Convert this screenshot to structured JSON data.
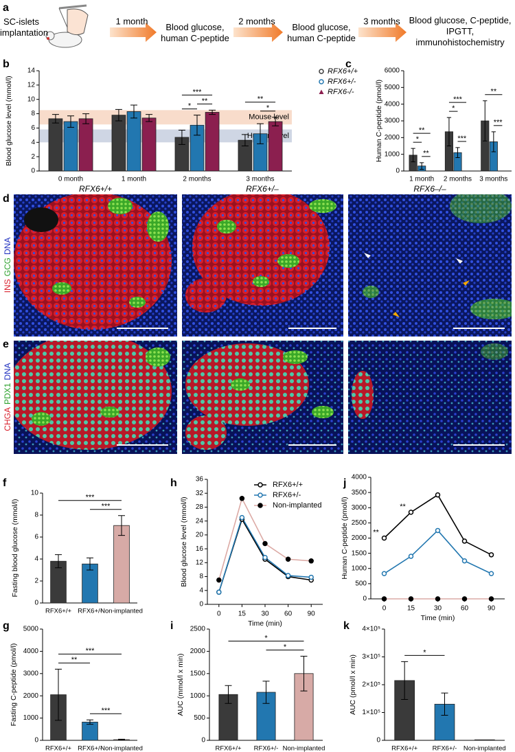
{
  "panel_a": {
    "panel": "a",
    "steps": [
      "SC-islets implantation",
      "Blood glucose, human C-peptide",
      "Blood glucose, human C-peptide",
      "Blood glucose, C-peptide, IPGTT, immunohistochemistry"
    ],
    "intervals": [
      "1 month",
      "2 months",
      "3 months"
    ]
  },
  "chart_data": [
    {
      "panel": "b",
      "type": "bar",
      "ylabel": "Blood glucose level (mmol/l)",
      "categories": [
        "0 month",
        "1 month",
        "2 months",
        "3 months"
      ],
      "series": [
        {
          "name": "RFX6+/+",
          "color": "#3a3a3a",
          "marker": "open",
          "values": [
            7.3,
            7.8,
            4.7,
            4.3
          ],
          "errors": [
            0.6,
            0.8,
            1.0,
            0.8
          ]
        },
        {
          "name": "RFX6+/-",
          "color": "#2277b0",
          "marker": "open",
          "values": [
            6.9,
            8.3,
            6.4,
            5.2
          ],
          "errors": [
            0.8,
            0.9,
            1.4,
            1.4
          ]
        },
        {
          "name": "RFX6-/-",
          "color": "#8b1f4f",
          "marker": "triangle",
          "values": [
            7.3,
            7.4,
            8.2,
            6.9
          ],
          "errors": [
            0.7,
            0.5,
            0.3,
            0.6
          ]
        }
      ],
      "ylim": [
        0,
        14
      ],
      "yticks": [
        0,
        2,
        4,
        6,
        8,
        10,
        12,
        14
      ],
      "bands": [
        {
          "label": "Mouse level",
          "range": [
            6.5,
            8.5
          ],
          "color": "#f8dccb"
        },
        {
          "label": "Human level",
          "range": [
            4,
            5.8
          ],
          "color": "#cfd6e4"
        }
      ],
      "significance": [
        {
          "label": "*",
          "category": "2 months",
          "between": [
            "RFX6+/+",
            "RFX6+/-"
          ]
        },
        {
          "label": "**",
          "category": "2 months",
          "between": [
            "RFX6+/-",
            "RFX6-/-"
          ]
        },
        {
          "label": "***",
          "category": "2 months",
          "between": [
            "RFX6+/+",
            "RFX6-/-"
          ]
        },
        {
          "label": "*",
          "category": "3 months",
          "between": [
            "RFX6+/-",
            "RFX6-/-"
          ]
        },
        {
          "label": "**",
          "category": "3 months",
          "between": [
            "RFX6+/+",
            "RFX6-/-"
          ]
        }
      ],
      "legend": "outside-right"
    },
    {
      "panel": "c",
      "type": "bar",
      "ylabel": "Human C-peptide (pmol/l)",
      "categories": [
        "1 month",
        "2 months",
        "3 months"
      ],
      "series": [
        {
          "name": "RFX6+/+",
          "color": "#3a3a3a",
          "values": [
            950,
            2350,
            3000
          ],
          "errors": [
            400,
            850,
            1200
          ]
        },
        {
          "name": "RFX6+/-",
          "color": "#2277b0",
          "values": [
            300,
            1100,
            1750
          ],
          "errors": [
            200,
            300,
            600
          ]
        },
        {
          "name": "RFX6-/-",
          "color": "#8b1f4f",
          "values": [
            0,
            0,
            0
          ],
          "errors": [
            0,
            0,
            0
          ]
        }
      ],
      "ylim": [
        0,
        6000
      ],
      "yticks": [
        0,
        1000,
        2000,
        3000,
        4000,
        5000,
        6000
      ],
      "significance": [
        {
          "label": "**",
          "category": "1 month",
          "between": [
            "RFX6+/-",
            "RFX6-/-"
          ]
        },
        {
          "label": "*",
          "category": "1 month",
          "between": [
            "RFX6+/+",
            "RFX6+/-"
          ]
        },
        {
          "label": "**",
          "category": "1 month",
          "between": [
            "RFX6+/+",
            "RFX6-/-"
          ]
        },
        {
          "label": "***",
          "category": "2 months",
          "between": [
            "RFX6+/-",
            "RFX6-/-"
          ]
        },
        {
          "label": "*",
          "category": "2 months",
          "between": [
            "RFX6+/+",
            "RFX6+/-"
          ]
        },
        {
          "label": "***",
          "category": "2 months",
          "between": [
            "RFX6+/+",
            "RFX6-/-"
          ]
        },
        {
          "label": "***",
          "category": "3 months",
          "between": [
            "RFX6+/-",
            "RFX6-/-"
          ]
        },
        {
          "label": "**",
          "category": "3 months",
          "between": [
            "RFX6+/+",
            "RFX6-/-"
          ]
        }
      ]
    },
    {
      "panel": "f",
      "type": "bar",
      "ylabel": "Fasting blood glucose (mmol/l)",
      "categories": [
        "RFX6+/+",
        "RFX6+/-",
        "Non-implanted"
      ],
      "values": [
        3.8,
        3.55,
        7.05
      ],
      "errors": [
        0.6,
        0.55,
        0.9
      ],
      "colors": [
        "#3a3a3a",
        "#2277b0",
        "#d7aaa6"
      ],
      "ylim": [
        0,
        10
      ],
      "yticks": [
        0,
        2,
        4,
        6,
        8,
        10
      ],
      "significance": [
        {
          "label": "***",
          "between": [
            "RFX6+/-",
            "Non-implanted"
          ]
        },
        {
          "label": "***",
          "between": [
            "RFX6+/+",
            "Non-implanted"
          ]
        }
      ]
    },
    {
      "panel": "h",
      "type": "line",
      "ylabel": "Blood glucose level (mmol/l)",
      "xlabel": "Time (min)",
      "categories": [
        "0",
        "15",
        "30",
        "60",
        "90"
      ],
      "series": [
        {
          "name": "RFX6+/+",
          "color": "#000000",
          "marker": "open",
          "values": [
            3.5,
            24.5,
            13,
            8,
            7
          ]
        },
        {
          "name": "RFX6+/-",
          "color": "#2277b0",
          "marker": "open",
          "values": [
            3.5,
            25,
            13.5,
            8.3,
            7.8
          ]
        },
        {
          "name": "Non-implanted",
          "color": "#dcaaa5",
          "marker": "filled",
          "marker_color": "#000000",
          "values": [
            7,
            30.5,
            17.5,
            13,
            12.5
          ]
        }
      ],
      "ylim": [
        0,
        36
      ],
      "yticks": [
        0,
        4,
        8,
        12,
        16,
        20,
        24,
        28,
        32,
        36
      ],
      "legend": "upper-right"
    },
    {
      "panel": "j",
      "type": "line",
      "ylabel": "Human C-peptide (pmol/l)",
      "xlabel": "Time (min)",
      "categories": [
        "0",
        "15",
        "30",
        "60",
        "90"
      ],
      "series": [
        {
          "name": "RFX6+/+",
          "color": "#000000",
          "marker": "open",
          "values": [
            2000,
            2850,
            3420,
            1900,
            1450
          ]
        },
        {
          "name": "RFX6+/-",
          "color": "#2277b0",
          "marker": "open",
          "values": [
            830,
            1400,
            2250,
            1250,
            830
          ]
        },
        {
          "name": "Non-implanted",
          "color": "#dcaaa5",
          "marker": "filled",
          "marker_color": "#000000",
          "values": [
            0,
            0,
            0,
            0,
            0
          ]
        }
      ],
      "ylim": [
        0,
        4000
      ],
      "yticks": [
        0,
        500,
        1000,
        1500,
        2000,
        2500,
        3000,
        3500,
        4000
      ],
      "significance": [
        {
          "label": "**",
          "category": "0"
        },
        {
          "label": "**",
          "category": "15"
        }
      ]
    },
    {
      "panel": "g",
      "type": "bar",
      "ylabel": "Fasting C-peptide (pmol/l)",
      "categories": [
        "RFX6+/+",
        "RFX6+/-",
        "Non-implanted"
      ],
      "values": [
        2050,
        820,
        30
      ],
      "errors": [
        1150,
        100,
        20
      ],
      "colors": [
        "#3a3a3a",
        "#2277b0",
        "#d7aaa6"
      ],
      "ylim": [
        0,
        5000
      ],
      "yticks": [
        0,
        1000,
        2000,
        3000,
        4000,
        5000
      ],
      "significance": [
        {
          "label": "**",
          "between": [
            "RFX6+/+",
            "RFX6+/-"
          ]
        },
        {
          "label": "***",
          "between": [
            "RFX6+/-",
            "Non-implanted"
          ]
        },
        {
          "label": "***",
          "between": [
            "RFX6+/+",
            "Non-implanted"
          ]
        }
      ]
    },
    {
      "panel": "i",
      "type": "bar",
      "ylabel": "AUC (mmol/l x min)",
      "categories": [
        "RFX6+/+",
        "RFX6+/-",
        "Non-implanted"
      ],
      "values": [
        1030,
        1080,
        1500
      ],
      "errors": [
        200,
        250,
        390
      ],
      "colors": [
        "#3a3a3a",
        "#2277b0",
        "#d7aaa6"
      ],
      "ylim": [
        0,
        2500
      ],
      "yticks": [
        0,
        500,
        1000,
        1500,
        2000,
        2500
      ],
      "significance": [
        {
          "label": "*",
          "between": [
            "RFX6+/-",
            "Non-implanted"
          ]
        },
        {
          "label": "*",
          "between": [
            "RFX6+/+",
            "Non-implanted"
          ]
        }
      ]
    },
    {
      "panel": "k",
      "type": "bar",
      "ylabel": "AUC (pmol/l x min)",
      "categories": [
        "RFX6+/+",
        "RFX6+/-",
        "Non-implanted"
      ],
      "values": [
        215000,
        130000,
        2000
      ],
      "errors": [
        68000,
        40000,
        0
      ],
      "colors": [
        "#3a3a3a",
        "#2277b0",
        "#d7aaa6"
      ],
      "ylim": [
        0,
        400000
      ],
      "yticks": [
        0,
        {
          "value": 100000,
          "label": "1×10⁵"
        },
        {
          "value": 200000,
          "label": "2×10⁵"
        },
        {
          "value": 300000,
          "label": "3×10⁵"
        },
        {
          "value": 400000,
          "label": "4×10⁵"
        }
      ],
      "significance": [
        {
          "label": "*",
          "between": [
            "RFX6+/+",
            "RFX6+/-"
          ]
        }
      ]
    }
  ],
  "images": {
    "columns": [
      {
        "label": "RFX6+/+",
        "color": "#000000"
      },
      {
        "label": "RFX6+/–",
        "color": "#2277b0"
      },
      {
        "label": "RFX6–/–",
        "color": "#9b3a7a"
      }
    ],
    "rows": [
      {
        "panel": "d",
        "stains": [
          {
            "label": "INS",
            "color": "#d81e2a"
          },
          {
            "label": "GCG",
            "color": "#2aa02a"
          },
          {
            "label": "DNA",
            "color": "#2030c0"
          }
        ]
      },
      {
        "panel": "e",
        "stains": [
          {
            "label": "CHGA",
            "color": "#d81e2a"
          },
          {
            "label": "PDX1",
            "color": "#2aa02a"
          },
          {
            "label": "DNA",
            "color": "#2030c0"
          }
        ]
      }
    ]
  }
}
